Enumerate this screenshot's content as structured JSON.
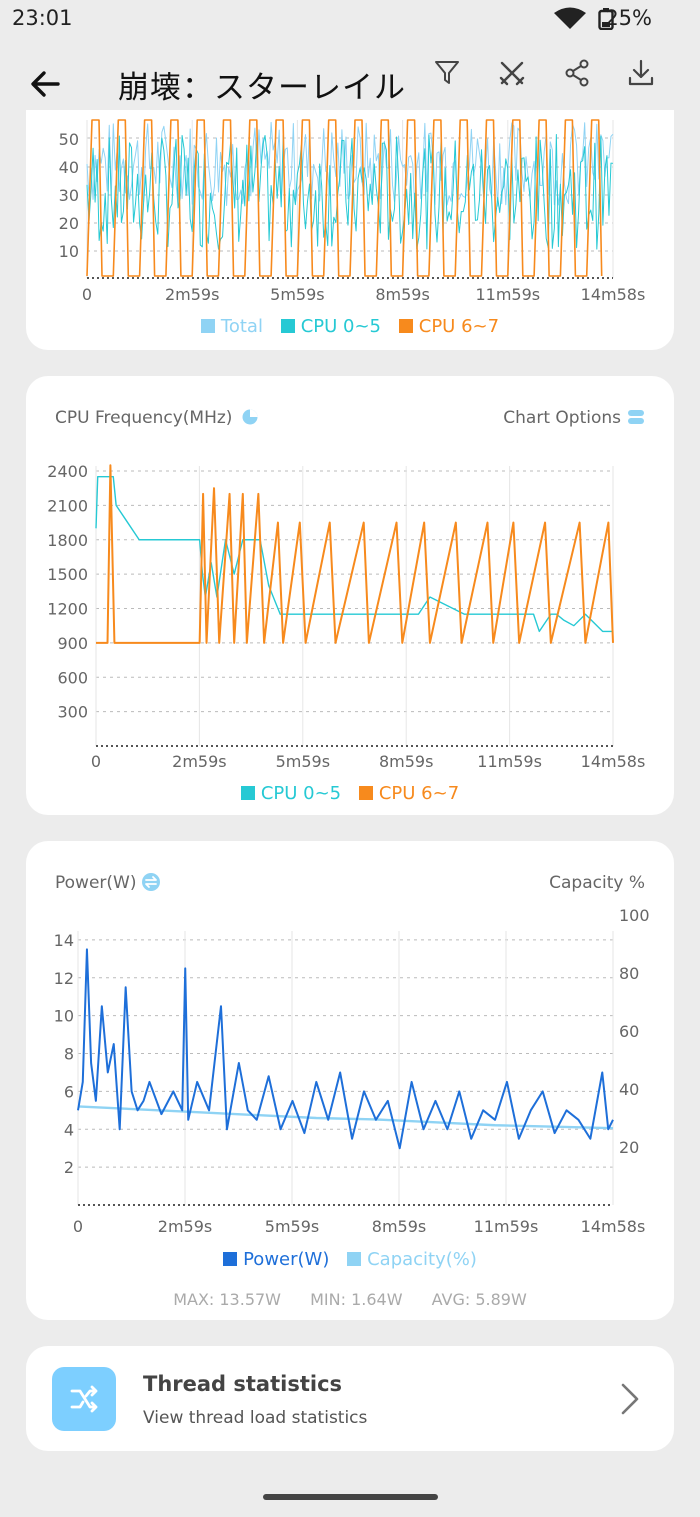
{
  "status_bar": {
    "time": "23:01",
    "battery": "25%"
  },
  "app_bar": {
    "title": "崩壊：スターレイル"
  },
  "colors": {
    "total": "#8fd3f4",
    "cpu_0_5": "#26c9d4",
    "cpu_6_7": "#f78a1d",
    "power": "#1e6fd9",
    "capacity": "#8fd3f4"
  },
  "load_card": {
    "legend": [
      "Total",
      "CPU 0~5",
      "CPU 6~7"
    ]
  },
  "freq_card": {
    "title": "CPU Frequency(MHz)",
    "options_label": "Chart Options",
    "legend": [
      "CPU 0~5",
      "CPU 6~7"
    ]
  },
  "power_card": {
    "title": "Power(W)",
    "right_title": "Capacity %",
    "legend": [
      "Power(W)",
      "Capacity(%)"
    ],
    "stats": {
      "max": "MAX: 13.57W",
      "min": "MIN: 1.64W",
      "avg": "AVG: 5.89W"
    }
  },
  "thread_card": {
    "title": "Thread statistics",
    "subtitle": "View thread load statistics"
  },
  "chart_data": [
    {
      "type": "line",
      "x_ticks": [
        "0",
        "2m59s",
        "5m59s",
        "8m59s",
        "11m59s",
        "14m58s"
      ],
      "y_ticks": [
        "10",
        "20",
        "30",
        "40",
        "50"
      ],
      "series": [
        {
          "name": "Total",
          "values": []
        },
        {
          "name": "CPU 0~5",
          "values": []
        },
        {
          "name": "CPU 6~7",
          "values": []
        }
      ]
    },
    {
      "type": "line",
      "title": "CPU Frequency(MHz)",
      "x_ticks": [
        "0",
        "2m59s",
        "5m59s",
        "8m59s",
        "11m59s",
        "14m58s"
      ],
      "y_ticks": [
        "300",
        "600",
        "900",
        "1200",
        "1500",
        "1800",
        "2100",
        "2400"
      ],
      "ylim": [
        0,
        2400
      ],
      "x_range_s": [
        0,
        898
      ],
      "series": [
        {
          "name": "CPU 0~5",
          "points": [
            [
              0,
              1900
            ],
            [
              3,
              2350
            ],
            [
              30,
              2350
            ],
            [
              35,
              2100
            ],
            [
              75,
              1800
            ],
            [
              150,
              1800
            ],
            [
              180,
              1800
            ],
            [
              185,
              1500
            ],
            [
              190,
              1300
            ],
            [
              200,
              1600
            ],
            [
              210,
              1300
            ],
            [
              225,
              1800
            ],
            [
              240,
              1500
            ],
            [
              255,
              1800
            ],
            [
              285,
              1800
            ],
            [
              300,
              1400
            ],
            [
              320,
              1150
            ],
            [
              450,
              1150
            ],
            [
              560,
              1150
            ],
            [
              580,
              1300
            ],
            [
              640,
              1150
            ],
            [
              760,
              1150
            ],
            [
              770,
              1000
            ],
            [
              790,
              1150
            ],
            [
              800,
              1150
            ],
            [
              812,
              1100
            ],
            [
              830,
              1050
            ],
            [
              850,
              1150
            ],
            [
              880,
              1000
            ],
            [
              898,
              1000
            ]
          ]
        },
        {
          "name": "CPU 6~7",
          "points": [
            [
              0,
              900
            ],
            [
              20,
              900
            ],
            [
              25,
              2450
            ],
            [
              32,
              900
            ],
            [
              180,
              900
            ],
            [
              186,
              2200
            ],
            [
              192,
              900
            ],
            [
              205,
              2250
            ],
            [
              214,
              900
            ],
            [
              232,
              2200
            ],
            [
              240,
              900
            ],
            [
              255,
              2200
            ],
            [
              262,
              900
            ],
            [
              282,
              2200
            ],
            [
              292,
              900
            ],
            [
              316,
              1950
            ],
            [
              325,
              900
            ],
            [
              354,
              1950
            ],
            [
              364,
              900
            ],
            [
              406,
              1950
            ],
            [
              416,
              900
            ],
            [
              465,
              1950
            ],
            [
              474,
              900
            ],
            [
              522,
              1950
            ],
            [
              532,
              900
            ],
            [
              570,
              1950
            ],
            [
              580,
              900
            ],
            [
              625,
              1950
            ],
            [
              635,
              900
            ],
            [
              680,
              1950
            ],
            [
              690,
              900
            ],
            [
              725,
              1950
            ],
            [
              735,
              900
            ],
            [
              780,
              1950
            ],
            [
              790,
              900
            ],
            [
              840,
              1950
            ],
            [
              850,
              900
            ],
            [
              890,
              1950
            ],
            [
              898,
              900
            ]
          ]
        }
      ]
    },
    {
      "type": "line",
      "title": "Power(W)",
      "x_ticks": [
        "0",
        "2m59s",
        "5m59s",
        "8m59s",
        "11m59s",
        "14m58s"
      ],
      "y_ticks": [
        "2",
        "4",
        "6",
        "8",
        "10",
        "12",
        "14"
      ],
      "y2_ticks": [
        "20",
        "40",
        "60",
        "80",
        "100"
      ],
      "ylim": [
        0,
        15
      ],
      "y2lim": [
        0,
        100
      ],
      "x_range_s": [
        0,
        898
      ],
      "series": [
        {
          "name": "Power(W)",
          "axis": "left",
          "points": [
            [
              0,
              5.0
            ],
            [
              8,
              6.5
            ],
            [
              15,
              13.5
            ],
            [
              22,
              7.5
            ],
            [
              30,
              5.5
            ],
            [
              40,
              10.5
            ],
            [
              50,
              7.0
            ],
            [
              60,
              8.5
            ],
            [
              70,
              4.0
            ],
            [
              80,
              11.5
            ],
            [
              90,
              6.0
            ],
            [
              100,
              5.0
            ],
            [
              110,
              5.5
            ],
            [
              120,
              6.5
            ],
            [
              140,
              4.8
            ],
            [
              160,
              6.0
            ],
            [
              175,
              5.0
            ],
            [
              180,
              12.5
            ],
            [
              185,
              4.5
            ],
            [
              200,
              6.5
            ],
            [
              220,
              5.0
            ],
            [
              240,
              10.5
            ],
            [
              250,
              4.0
            ],
            [
              270,
              7.5
            ],
            [
              285,
              5.0
            ],
            [
              300,
              4.5
            ],
            [
              320,
              6.8
            ],
            [
              340,
              4.0
            ],
            [
              360,
              5.5
            ],
            [
              380,
              3.8
            ],
            [
              400,
              6.5
            ],
            [
              420,
              4.5
            ],
            [
              440,
              7.0
            ],
            [
              460,
              3.5
            ],
            [
              480,
              6.0
            ],
            [
              500,
              4.5
            ],
            [
              520,
              5.5
            ],
            [
              540,
              3.0
            ],
            [
              560,
              6.5
            ],
            [
              580,
              4.0
            ],
            [
              600,
              5.5
            ],
            [
              620,
              4.0
            ],
            [
              640,
              6.0
            ],
            [
              660,
              3.5
            ],
            [
              680,
              5.0
            ],
            [
              700,
              4.5
            ],
            [
              720,
              6.5
            ],
            [
              740,
              3.5
            ],
            [
              760,
              5.0
            ],
            [
              780,
              6.0
            ],
            [
              800,
              3.8
            ],
            [
              820,
              5.0
            ],
            [
              840,
              4.5
            ],
            [
              860,
              3.5
            ],
            [
              880,
              7.0
            ],
            [
              890,
              4.0
            ],
            [
              898,
              4.5
            ]
          ]
        },
        {
          "name": "Capacity(%)",
          "axis": "right",
          "points": [
            [
              0,
              34
            ],
            [
              100,
              33
            ],
            [
              200,
              32
            ],
            [
              300,
              31
            ],
            [
              400,
              30
            ],
            [
              500,
              29.5
            ],
            [
              600,
              28.5
            ],
            [
              700,
              27.5
            ],
            [
              800,
              27
            ],
            [
              898,
              26.5
            ]
          ]
        }
      ]
    }
  ]
}
